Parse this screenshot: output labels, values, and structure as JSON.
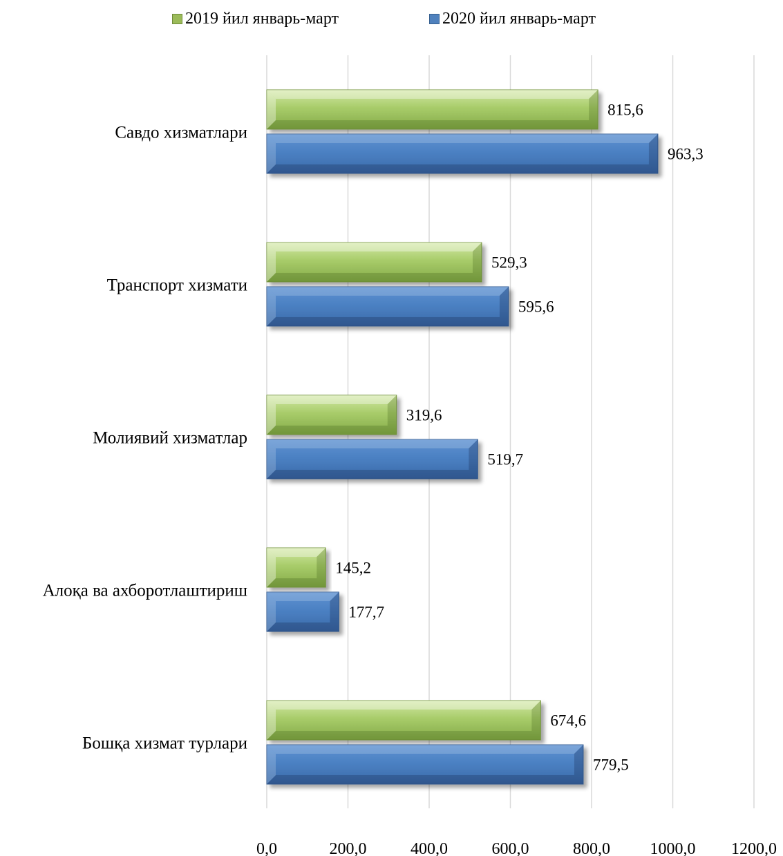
{
  "chart_data": {
    "type": "bar",
    "orientation": "horizontal",
    "categories": [
      "Савдо хизматлари",
      "Транспорт хизмати",
      "Молиявий хизматлар",
      "Алоқа ва ахборотлаштириш",
      "Бошқа хизмат турлари"
    ],
    "series": [
      {
        "name": "2019 йил январь-март",
        "values": [
          815.6,
          529.3,
          319.6,
          145.2,
          674.6
        ],
        "labels": [
          "815,6",
          "529,3",
          "319,6",
          "145,2",
          "674,6"
        ],
        "color": "#9bbb59"
      },
      {
        "name": "2020 йил январь-март",
        "values": [
          963.3,
          595.6,
          519.7,
          177.7,
          779.5
        ],
        "labels": [
          "963,3",
          "595,6",
          "519,7",
          "177,7",
          "779,5"
        ],
        "color": "#4f81bd"
      }
    ],
    "xticks": [
      0,
      200,
      400,
      600,
      800,
      1000,
      1200
    ],
    "xtick_labels": [
      "0,0",
      "200,0",
      "400,0",
      "600,0",
      "800,0",
      "1000,0",
      "1200,0"
    ],
    "xlim": [
      0,
      1200
    ],
    "grid": "vertical",
    "legend": "top-center",
    "title": "",
    "xlabel": "",
    "ylabel": ""
  }
}
